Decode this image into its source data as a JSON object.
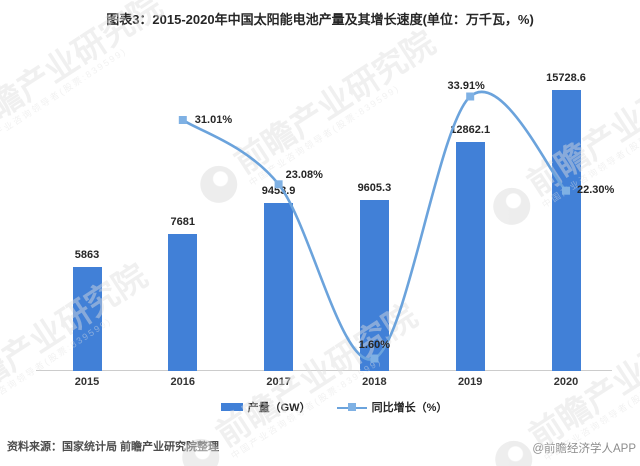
{
  "page": {
    "title": "图表3：2015-2020年中国太阳能电池产量及其增长速度(单位：万千瓦，%)"
  },
  "chart_data": {
    "type": "bar",
    "combo": "bar+line",
    "title": "图表3：2015-2020年中国太阳能电池产量及其增长速度(单位：万千瓦，%)",
    "xlabel": "",
    "ylabel": "",
    "categories": [
      "2015",
      "2016",
      "2017",
      "2018",
      "2019",
      "2020"
    ],
    "series": [
      {
        "name": "产量（GW）",
        "type": "bar",
        "color": "#4180D7",
        "values": [
          5863,
          7681,
          9453.9,
          9605.3,
          12862.1,
          15728.6
        ],
        "labels": [
          "5863",
          "7681",
          "9453.9",
          "9605.3",
          "12862.1",
          "15728.6"
        ]
      },
      {
        "name": "同比增长（%）",
        "type": "line",
        "color": "#6BA3DC",
        "marker_color": "#7FB1E4",
        "x_categories": [
          "2016",
          "2017",
          "2018",
          "2019",
          "2020"
        ],
        "values": [
          31.01,
          23.08,
          1.6,
          33.91,
          22.3
        ],
        "labels": [
          "31.01%",
          "23.08%",
          "1.60%",
          "33.91%",
          "22.30%"
        ]
      }
    ],
    "bar_axis_range": [
      0,
      16000
    ],
    "line_axis_range": [
      0,
      35
    ],
    "y_axis_ticks_visible": false,
    "grid": false,
    "legend_position": "bottom",
    "smooth_line": true
  },
  "legend": {
    "items": [
      {
        "label": "产量（GW）"
      },
      {
        "label": "同比增长（%）"
      }
    ]
  },
  "footer": {
    "source": "资料来源：国家统计局 前瞻产业研究院整理",
    "credit": "@前瞻经济学人APP"
  },
  "watermark": {
    "brand": "前瞻产业研究院",
    "tagline": "中国产业咨询领导者(股票:839599)"
  }
}
